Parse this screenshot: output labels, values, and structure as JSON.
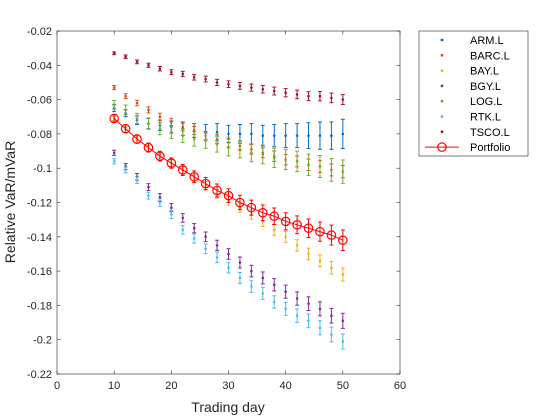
{
  "chart_data": {
    "type": "scatter",
    "title": "",
    "xlabel": "Trading day",
    "ylabel": "Relative VaR/mVaR",
    "xlim": [
      0,
      60
    ],
    "ylim": [
      -0.22,
      -0.02
    ],
    "xticks": [
      0,
      10,
      20,
      30,
      40,
      50,
      60
    ],
    "yticks": [
      -0.02,
      -0.04,
      -0.06,
      -0.08,
      -0.1,
      -0.12,
      -0.14,
      -0.16,
      -0.18,
      -0.2,
      -0.22
    ],
    "xtick_labels": [
      "0",
      "10",
      "20",
      "30",
      "40",
      "50",
      "60"
    ],
    "ytick_labels": [
      "-0.02",
      "-0.04",
      "-0.06",
      "-0.08",
      "-0.1",
      "-0.12",
      "-0.14",
      "-0.16",
      "-0.18",
      "-0.2",
      "-0.22"
    ],
    "grid": false,
    "legend_position": "outside-top-right",
    "x": [
      10,
      12,
      14,
      16,
      18,
      20,
      22,
      24,
      26,
      28,
      30,
      32,
      34,
      36,
      38,
      40,
      42,
      44,
      46,
      48,
      50
    ],
    "series": [
      {
        "name": "ARM.L",
        "color": "#0072bd",
        "marker": "dot",
        "values": [
          -0.065,
          -0.068,
          -0.072,
          -0.074,
          -0.075,
          -0.076,
          -0.077,
          -0.078,
          -0.079,
          -0.079,
          -0.08,
          -0.08,
          -0.08,
          -0.081,
          -0.081,
          -0.081,
          -0.081,
          -0.081,
          -0.081,
          -0.081,
          -0.08
        ],
        "err": [
          0.002,
          0.002,
          0.0025,
          0.003,
          0.003,
          0.0035,
          0.004,
          0.004,
          0.0045,
          0.005,
          0.005,
          0.0055,
          0.006,
          0.006,
          0.0065,
          0.007,
          0.007,
          0.0075,
          0.008,
          0.008,
          0.0085
        ]
      },
      {
        "name": "BARC.L",
        "color": "#d95319",
        "marker": "dot",
        "values": [
          -0.053,
          -0.058,
          -0.062,
          -0.066,
          -0.07,
          -0.073,
          -0.076,
          -0.078,
          -0.081,
          -0.083,
          -0.085,
          -0.087,
          -0.089,
          -0.091,
          -0.093,
          -0.095,
          -0.096,
          -0.098,
          -0.099,
          -0.101,
          -0.102
        ],
        "err": [
          0.0012,
          0.0014,
          0.0016,
          0.0018,
          0.002,
          0.0021,
          0.0022,
          0.0023,
          0.0024,
          0.0025,
          0.0026,
          0.0027,
          0.0028,
          0.0029,
          0.003,
          0.0031,
          0.0032,
          0.0033,
          0.0034,
          0.0035,
          0.0036
        ]
      },
      {
        "name": "BAY.L",
        "color": "#edb120",
        "marker": "dot",
        "values": [
          -0.071,
          -0.076,
          -0.082,
          -0.087,
          -0.092,
          -0.097,
          -0.101,
          -0.106,
          -0.11,
          -0.115,
          -0.119,
          -0.123,
          -0.127,
          -0.131,
          -0.136,
          -0.14,
          -0.145,
          -0.15,
          -0.154,
          -0.158,
          -0.162
        ],
        "err": [
          0.0012,
          0.0014,
          0.0015,
          0.0017,
          0.0018,
          0.002,
          0.0021,
          0.0022,
          0.0023,
          0.0025,
          0.0026,
          0.0027,
          0.0028,
          0.003,
          0.0031,
          0.0032,
          0.0033,
          0.0034,
          0.0035,
          0.0037,
          0.0038
        ]
      },
      {
        "name": "BGY.L",
        "color": "#7e2f8e",
        "marker": "dot",
        "values": [
          -0.091,
          -0.099,
          -0.105,
          -0.111,
          -0.117,
          -0.123,
          -0.129,
          -0.135,
          -0.14,
          -0.145,
          -0.15,
          -0.155,
          -0.16,
          -0.164,
          -0.168,
          -0.172,
          -0.176,
          -0.179,
          -0.182,
          -0.186,
          -0.189
        ],
        "err": [
          0.0015,
          0.0017,
          0.0019,
          0.002,
          0.0022,
          0.0024,
          0.0025,
          0.0027,
          0.0028,
          0.003,
          0.0031,
          0.0032,
          0.0034,
          0.0035,
          0.0036,
          0.0038,
          0.0039,
          0.004,
          0.0041,
          0.0043,
          0.0044
        ]
      },
      {
        "name": "LOG.L",
        "color": "#77ac30",
        "marker": "dot",
        "values": [
          -0.063,
          -0.066,
          -0.071,
          -0.074,
          -0.077,
          -0.079,
          -0.081,
          -0.083,
          -0.084,
          -0.086,
          -0.088,
          -0.089,
          -0.091,
          -0.092,
          -0.094,
          -0.095,
          -0.096,
          -0.098,
          -0.099,
          -0.101,
          -0.102
        ],
        "err": [
          0.0025,
          0.0028,
          0.003,
          0.0033,
          0.0035,
          0.0037,
          0.004,
          0.0042,
          0.0044,
          0.0046,
          0.0048,
          0.005,
          0.0052,
          0.0054,
          0.0056,
          0.0058,
          0.006,
          0.0062,
          0.0064,
          0.0066,
          0.0068
        ]
      },
      {
        "name": "RTK.L",
        "color": "#4dbeee",
        "marker": "dot",
        "values": [
          -0.096,
          -0.101,
          -0.107,
          -0.116,
          -0.12,
          -0.127,
          -0.136,
          -0.141,
          -0.147,
          -0.152,
          -0.158,
          -0.164,
          -0.169,
          -0.173,
          -0.178,
          -0.182,
          -0.186,
          -0.189,
          -0.193,
          -0.197,
          -0.201
        ],
        "err": [
          0.0015,
          0.0017,
          0.0019,
          0.002,
          0.0022,
          0.0024,
          0.0025,
          0.0027,
          0.0028,
          0.003,
          0.0031,
          0.0032,
          0.0034,
          0.0035,
          0.0036,
          0.0038,
          0.0039,
          0.004,
          0.0041,
          0.0043,
          0.0044
        ]
      },
      {
        "name": "TSCO.L",
        "color": "#a2142f",
        "marker": "dot",
        "values": [
          -0.033,
          -0.035,
          -0.038,
          -0.04,
          -0.042,
          -0.044,
          -0.045,
          -0.047,
          -0.048,
          -0.05,
          -0.051,
          -0.052,
          -0.053,
          -0.054,
          -0.055,
          -0.056,
          -0.057,
          -0.058,
          -0.058,
          -0.059,
          -0.06
        ],
        "err": [
          0.0008,
          0.001,
          0.0011,
          0.0012,
          0.0013,
          0.0014,
          0.0015,
          0.0016,
          0.0017,
          0.0018,
          0.0019,
          0.002,
          0.0021,
          0.0022,
          0.0023,
          0.0024,
          0.0025,
          0.0026,
          0.0027,
          0.0028,
          0.0029
        ]
      },
      {
        "name": "Portfolio",
        "color": "#ff0000",
        "marker": "circle-line",
        "values": [
          -0.071,
          -0.077,
          -0.083,
          -0.088,
          -0.093,
          -0.097,
          -0.101,
          -0.105,
          -0.109,
          -0.113,
          -0.116,
          -0.12,
          -0.123,
          -0.126,
          -0.128,
          -0.131,
          -0.133,
          -0.135,
          -0.137,
          -0.139,
          -0.142
        ],
        "err": [
          0.002,
          0.0022,
          0.0024,
          0.0026,
          0.0028,
          0.003,
          0.0032,
          0.0034,
          0.0036,
          0.0038,
          0.004,
          0.0042,
          0.0044,
          0.0046,
          0.0048,
          0.005,
          0.0052,
          0.0054,
          0.0056,
          0.0058,
          0.006
        ]
      }
    ]
  }
}
